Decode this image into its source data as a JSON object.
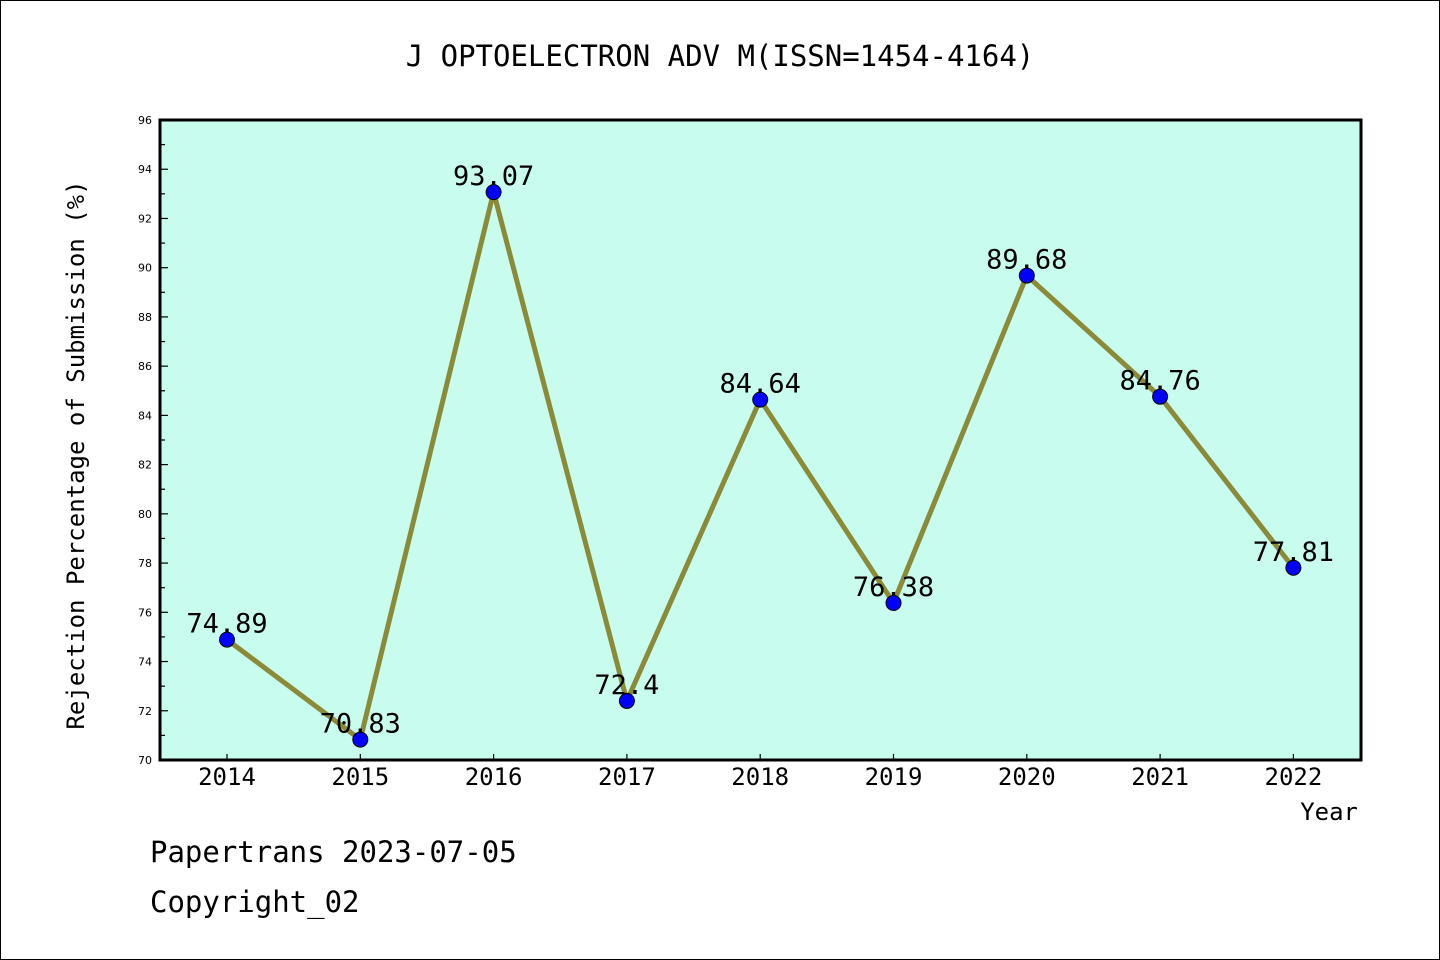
{
  "chart_data": {
    "type": "line",
    "title": "J OPTOELECTRON ADV M(ISSN=1454-4164)",
    "xlabel": "Year",
    "ylabel": "Rejection Percentage of Submission (%)",
    "categories": [
      "2014",
      "2015",
      "2016",
      "2017",
      "2018",
      "2019",
      "2020",
      "2021",
      "2022"
    ],
    "series": [
      {
        "values": [
          74.89,
          70.83,
          93.07,
          72.4,
          84.64,
          76.38,
          89.68,
          84.76,
          77.81
        ],
        "labels": [
          "74.89",
          "70.83",
          "93.07",
          "72.4",
          "84.64",
          "76.38",
          "89.68",
          "84.76",
          "77.81"
        ]
      }
    ],
    "ylim": [
      70,
      96
    ],
    "yticks": [
      "70",
      "72",
      "74",
      "76",
      "78",
      "80",
      "82",
      "84",
      "86",
      "88",
      "90",
      "92",
      "94",
      "96"
    ],
    "grid": false,
    "legend": "none",
    "colors": {
      "plot_background": "#c8fcee",
      "line": "#8b8a38",
      "marker": "#0000ff"
    }
  },
  "footer": {
    "watermark": "Papertrans 2023-07-05",
    "copyright": "Copyright_02"
  }
}
